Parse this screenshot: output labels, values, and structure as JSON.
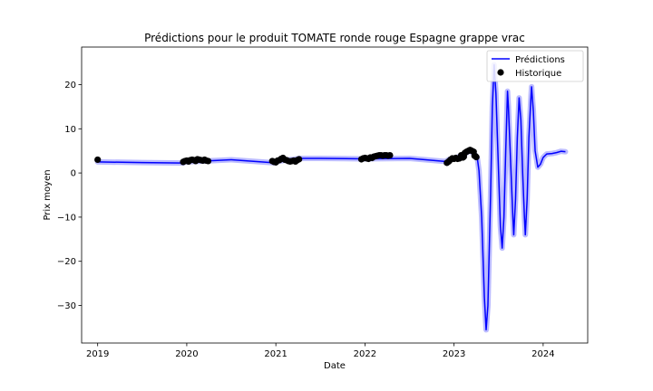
{
  "chart_data": {
    "type": "line",
    "title": "Prédictions pour le produit TOMATE ronde rouge Espagne grappe vrac",
    "xlabel": "Date",
    "ylabel": "Prix moyen",
    "xlim": [
      2018.82,
      2024.5
    ],
    "ylim": [
      -38.5,
      28.5
    ],
    "x_ticks": [
      2019,
      2020,
      2021,
      2022,
      2023,
      2024
    ],
    "x_tick_labels": [
      "2019",
      "2020",
      "2021",
      "2022",
      "2023",
      "2024"
    ],
    "y_ticks": [
      -30,
      -20,
      -10,
      0,
      10,
      20
    ],
    "y_tick_labels": [
      "−30",
      "−20",
      "−10",
      "0",
      "10",
      "20"
    ],
    "grid": false,
    "legend_position": "top-right",
    "legend": [
      "Prédictions",
      "Historique"
    ],
    "colors": {
      "predictions": "#0000ff",
      "band": "#aaaaff",
      "historique": "#000000"
    },
    "series": [
      {
        "name": "Prédictions",
        "kind": "line",
        "segments": [
          [
            [
              2019.0,
              2.5
            ],
            [
              2019.5,
              2.35
            ],
            [
              2019.96,
              2.25
            ]
          ],
          [
            [
              2020.0,
              2.5
            ],
            [
              2020.5,
              3.0
            ],
            [
              2020.98,
              2.3
            ]
          ],
          [
            [
              2021.0,
              2.6
            ],
            [
              2021.2,
              3.1
            ],
            [
              2021.27,
              3.3
            ],
            [
              2021.5,
              3.3
            ],
            [
              2021.98,
              3.2
            ]
          ],
          [
            [
              2022.0,
              3.2
            ],
            [
              2022.5,
              3.3
            ],
            [
              2022.9,
              2.6
            ],
            [
              2022.95,
              3.1
            ],
            [
              2023.0,
              3.3
            ],
            [
              2023.1,
              4.0
            ],
            [
              2023.17,
              5.0
            ],
            [
              2023.22,
              4.5
            ],
            [
              2023.26,
              3.5
            ],
            [
              2023.28,
              0.5
            ],
            [
              2023.31,
              -10.0
            ],
            [
              2023.34,
              -28.0
            ],
            [
              2023.36,
              -35.5
            ],
            [
              2023.38,
              -30.0
            ],
            [
              2023.41,
              -5.0
            ],
            [
              2023.43,
              15.0
            ],
            [
              2023.45,
              24.5
            ],
            [
              2023.47,
              18.0
            ],
            [
              2023.5,
              0.0
            ],
            [
              2023.52,
              -12.0
            ],
            [
              2023.54,
              -17.0
            ],
            [
              2023.56,
              -10.0
            ],
            [
              2023.58,
              5.0
            ],
            [
              2023.6,
              18.5
            ],
            [
              2023.61,
              15.0
            ],
            [
              2023.64,
              0.0
            ],
            [
              2023.66,
              -10.0
            ],
            [
              2023.67,
              -14.0
            ],
            [
              2023.69,
              -6.0
            ],
            [
              2023.71,
              8.0
            ],
            [
              2023.73,
              17.0
            ],
            [
              2023.75,
              12.0
            ],
            [
              2023.77,
              0.0
            ],
            [
              2023.79,
              -10.0
            ],
            [
              2023.8,
              -14.0
            ],
            [
              2023.82,
              -6.0
            ],
            [
              2023.84,
              8.0
            ],
            [
              2023.86,
              16.0
            ],
            [
              2023.87,
              19.5
            ],
            [
              2023.89,
              14.0
            ],
            [
              2023.91,
              5.0
            ],
            [
              2023.94,
              1.3
            ],
            [
              2023.97,
              2.0
            ],
            [
              2024.0,
              3.5
            ],
            [
              2024.04,
              4.3
            ],
            [
              2024.1,
              4.4
            ],
            [
              2024.15,
              4.6
            ],
            [
              2024.2,
              4.9
            ],
            [
              2024.25,
              4.8
            ]
          ]
        ]
      },
      {
        "name": "Historique",
        "kind": "scatter",
        "points": [
          [
            2019.0,
            3.0
          ],
          [
            2019.96,
            2.5
          ],
          [
            2019.98,
            2.7
          ],
          [
            2020.0,
            2.8
          ],
          [
            2020.02,
            2.6
          ],
          [
            2020.04,
            2.9
          ],
          [
            2020.06,
            3.0
          ],
          [
            2020.08,
            2.9
          ],
          [
            2020.1,
            2.7
          ],
          [
            2020.12,
            3.1
          ],
          [
            2020.14,
            3.0
          ],
          [
            2020.16,
            2.9
          ],
          [
            2020.18,
            2.8
          ],
          [
            2020.2,
            3.0
          ],
          [
            2020.22,
            2.8
          ],
          [
            2020.24,
            2.7
          ],
          [
            2020.96,
            2.7
          ],
          [
            2020.98,
            2.5
          ],
          [
            2021.0,
            2.4
          ],
          [
            2021.02,
            2.8
          ],
          [
            2021.04,
            2.9
          ],
          [
            2021.06,
            3.2
          ],
          [
            2021.08,
            3.4
          ],
          [
            2021.1,
            3.0
          ],
          [
            2021.12,
            2.9
          ],
          [
            2021.14,
            2.7
          ],
          [
            2021.16,
            2.6
          ],
          [
            2021.18,
            2.7
          ],
          [
            2021.2,
            2.8
          ],
          [
            2021.22,
            2.6
          ],
          [
            2021.24,
            2.9
          ],
          [
            2021.26,
            3.1
          ],
          [
            2021.96,
            3.1
          ],
          [
            2021.98,
            3.3
          ],
          [
            2022.0,
            3.4
          ],
          [
            2022.02,
            3.3
          ],
          [
            2022.04,
            3.2
          ],
          [
            2022.06,
            3.5
          ],
          [
            2022.08,
            3.4
          ],
          [
            2022.1,
            3.7
          ],
          [
            2022.12,
            3.8
          ],
          [
            2022.14,
            3.9
          ],
          [
            2022.16,
            4.0
          ],
          [
            2022.18,
            4.0
          ],
          [
            2022.2,
            3.9
          ],
          [
            2022.22,
            4.0
          ],
          [
            2022.24,
            4.0
          ],
          [
            2022.26,
            3.9
          ],
          [
            2022.28,
            4.0
          ],
          [
            2022.92,
            2.3
          ],
          [
            2022.94,
            2.6
          ],
          [
            2022.96,
            3.0
          ],
          [
            2022.98,
            3.3
          ],
          [
            2023.0,
            3.2
          ],
          [
            2023.02,
            3.4
          ],
          [
            2023.04,
            3.2
          ],
          [
            2023.06,
            3.3
          ],
          [
            2023.08,
            4.0
          ],
          [
            2023.1,
            3.5
          ],
          [
            2023.11,
            3.7
          ],
          [
            2023.12,
            4.5
          ],
          [
            2023.14,
            4.8
          ],
          [
            2023.16,
            5.0
          ],
          [
            2023.18,
            5.2
          ],
          [
            2023.2,
            5.0
          ],
          [
            2023.22,
            4.8
          ],
          [
            2023.23,
            3.9
          ],
          [
            2023.24,
            3.8
          ],
          [
            2023.25,
            3.6
          ]
        ]
      }
    ]
  }
}
